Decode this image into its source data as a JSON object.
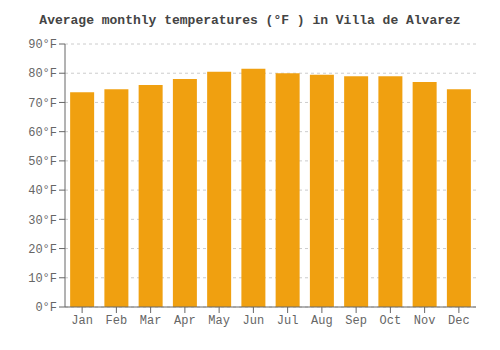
{
  "chart_data": {
    "type": "bar",
    "title": "Average monthly temperatures (°F ) in Villa de Alvarez",
    "categories": [
      "Jan",
      "Feb",
      "Mar",
      "Apr",
      "May",
      "Jun",
      "Jul",
      "Aug",
      "Sep",
      "Oct",
      "Nov",
      "Dec"
    ],
    "values": [
      73.5,
      74.5,
      76.0,
      78.0,
      80.5,
      81.5,
      80.0,
      79.5,
      79.0,
      79.0,
      77.0,
      74.5
    ],
    "color": "#F0A010",
    "ylim": [
      0,
      90
    ],
    "yticks": [
      {
        "value": 0,
        "label": "0°F"
      },
      {
        "value": 10,
        "label": "10°F"
      },
      {
        "value": 20,
        "label": "20°F"
      },
      {
        "value": 30,
        "label": "30°F"
      },
      {
        "value": 40,
        "label": "40°F"
      },
      {
        "value": 50,
        "label": "50°F"
      },
      {
        "value": 60,
        "label": "60°F"
      },
      {
        "value": 70,
        "label": "70°F"
      },
      {
        "value": 80,
        "label": "80°F"
      },
      {
        "value": 90,
        "label": "90°F"
      }
    ],
    "grid": true
  }
}
